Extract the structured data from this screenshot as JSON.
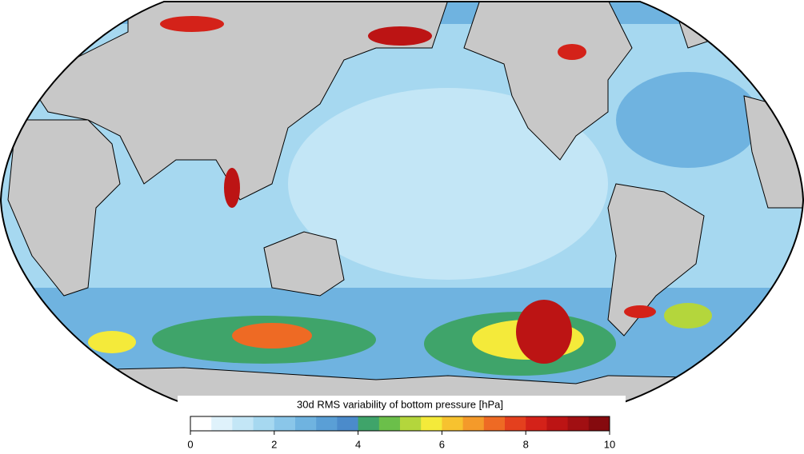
{
  "colorbar": {
    "title": "30d RMS variability of bottom pressure [hPa]",
    "range": [
      0,
      10
    ],
    "ticks": [
      0,
      2,
      4,
      6,
      8,
      10
    ],
    "colors": [
      "#ffffff",
      "#dff2fb",
      "#c3e6f6",
      "#a6d8f0",
      "#8ac6e9",
      "#6fb3e0",
      "#5a9fd6",
      "#4b8bcb",
      "#3fa46a",
      "#6bbf4a",
      "#b4d63c",
      "#f4ea3a",
      "#f7c22f",
      "#f49a2a",
      "#ee6a24",
      "#e4401e",
      "#d42219",
      "#bc1414",
      "#a10f12",
      "#850a0e"
    ]
  }
}
